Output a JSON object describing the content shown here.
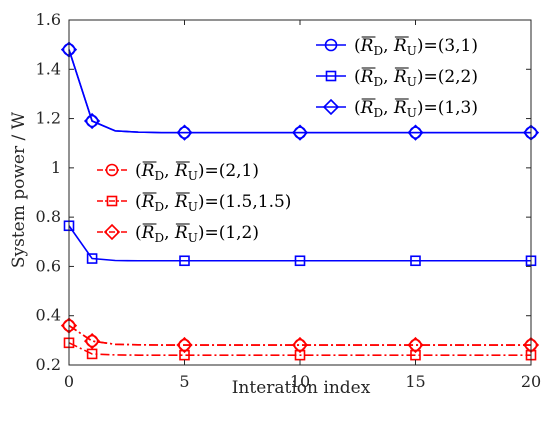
{
  "chart_data": {
    "type": "line",
    "xlabel": "Interation index",
    "ylabel": "System power / W",
    "xlim": [
      0,
      20
    ],
    "ylim": [
      0.2,
      1.6
    ],
    "xticks": [
      0,
      5,
      10,
      15,
      20
    ],
    "yticks": [
      0.2,
      0.4,
      0.6,
      0.8,
      1,
      1.2,
      1.4,
      1.6
    ],
    "grid": false,
    "series": [
      {
        "name": "(R̄D, R̄U)=(3,1)",
        "legend_symbol": "(R_D, R_U)",
        "legend_value": "=(3,1)",
        "color": "#0000ff",
        "line_style": "solid",
        "marker": "circle",
        "marker_x": [
          0,
          1,
          5,
          10,
          15,
          20
        ],
        "x": [
          0,
          1,
          2,
          3,
          4,
          5,
          10,
          15,
          20
        ],
        "y": [
          1.48,
          1.19,
          1.15,
          1.145,
          1.143,
          1.143,
          1.143,
          1.143,
          1.143
        ]
      },
      {
        "name": "(R̄D, R̄U)=(2,2)",
        "legend_symbol": "(R_D, R_U)",
        "legend_value": "=(2,2)",
        "color": "#0000ff",
        "line_style": "solid",
        "marker": "square",
        "marker_x": [
          0,
          1,
          5,
          10,
          15,
          20
        ],
        "x": [
          0,
          1,
          2,
          3,
          4,
          5,
          10,
          15,
          20
        ],
        "y": [
          0.765,
          0.632,
          0.624,
          0.623,
          0.623,
          0.623,
          0.623,
          0.623,
          0.623
        ]
      },
      {
        "name": "(R̄D, R̄U)=(1,3)",
        "legend_symbol": "(R_D, R_U)",
        "legend_value": "=(1,3)",
        "color": "#0000ff",
        "line_style": "solid",
        "marker": "diamond",
        "marker_x": [
          0,
          1,
          5,
          10,
          15,
          20
        ],
        "x": [
          0,
          1,
          2,
          3,
          4,
          5,
          10,
          15,
          20
        ],
        "y": [
          1.48,
          1.19,
          1.15,
          1.145,
          1.143,
          1.143,
          1.143,
          1.143,
          1.143
        ]
      },
      {
        "name": "(R̄D, R̄U)=(2,1)",
        "legend_symbol": "(R_D, R_U)",
        "legend_value": "=(2,1)",
        "color": "#ff0000",
        "line_style": "dashdot",
        "marker": "circle",
        "marker_x": [
          0,
          1,
          5,
          10,
          15,
          20
        ],
        "x": [
          0,
          1,
          2,
          3,
          4,
          5,
          10,
          15,
          20
        ],
        "y": [
          0.36,
          0.297,
          0.284,
          0.282,
          0.281,
          0.281,
          0.281,
          0.281,
          0.281
        ]
      },
      {
        "name": "(R̄D, R̄U)=(1.5,1.5)",
        "legend_symbol": "(R_D, R_U)",
        "legend_value": "=(1.5,1.5)",
        "color": "#ff0000",
        "line_style": "dashdot",
        "marker": "square",
        "marker_x": [
          0,
          1,
          5,
          10,
          15,
          20
        ],
        "x": [
          0,
          1,
          2,
          3,
          4,
          5,
          10,
          15,
          20
        ],
        "y": [
          0.29,
          0.245,
          0.241,
          0.24,
          0.24,
          0.24,
          0.24,
          0.24,
          0.24
        ]
      },
      {
        "name": "(R̄D, R̄U)=(1,2)",
        "legend_symbol": "(R_D, R_U)",
        "legend_value": "=(1,2)",
        "color": "#ff0000",
        "line_style": "dashdot",
        "marker": "diamond",
        "marker_x": [
          0,
          1,
          5,
          10,
          15,
          20
        ],
        "x": [
          0,
          1,
          2,
          3,
          4,
          5,
          10,
          15,
          20
        ],
        "y": [
          0.36,
          0.297,
          0.284,
          0.282,
          0.281,
          0.281,
          0.281,
          0.281,
          0.281
        ]
      }
    ],
    "legends": [
      {
        "placement": "top-right",
        "series": [
          0,
          1,
          2
        ]
      },
      {
        "placement": "center-left",
        "series": [
          3,
          4,
          5
        ]
      }
    ]
  }
}
